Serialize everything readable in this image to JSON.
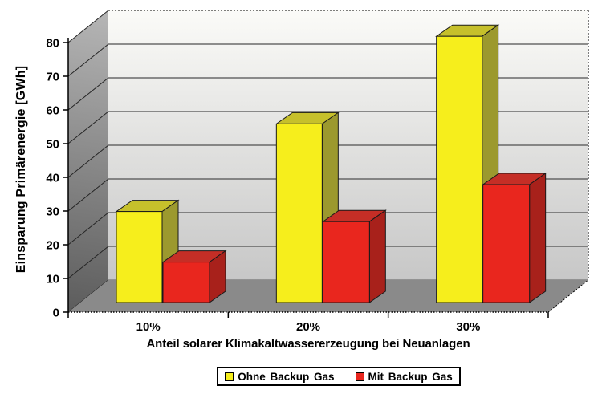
{
  "chart_data": {
    "type": "bar",
    "style": "3d-clustered-column",
    "title": "",
    "xlabel": "Anteil solarer Klimakaltwassererzeugung bei Neuanlagen",
    "ylabel": "Einsparung Primärenergie [GWh]",
    "categories": [
      "10%",
      "20%",
      "30%"
    ],
    "series": [
      {
        "name": "Ohne Backup Gas",
        "values": [
          27,
          53,
          79
        ],
        "color": "#F6EE1C",
        "top_color": "#C6C02B",
        "side_color": "#9C992E"
      },
      {
        "name": "Mit Backup Gas",
        "values": [
          12,
          24,
          35
        ],
        "color": "#E9261E",
        "top_color": "#C52E26",
        "side_color": "#A8211B"
      }
    ],
    "ylim": [
      0,
      80
    ],
    "yticks": [
      0,
      10,
      20,
      30,
      40,
      50,
      60,
      70,
      80
    ],
    "grid": true,
    "legend_position": "bottom",
    "colors": {
      "wall_left_dark": "#5C5C5C",
      "wall_left_light": "#B6B6B6",
      "wall_back_top": "#FBFBF8",
      "wall_back_bottom": "#C7C7C7",
      "floor": "#8A8A8A",
      "gridline": "#4F4F4F",
      "axis": "#000000",
      "outline": "#1A1A1A"
    }
  }
}
